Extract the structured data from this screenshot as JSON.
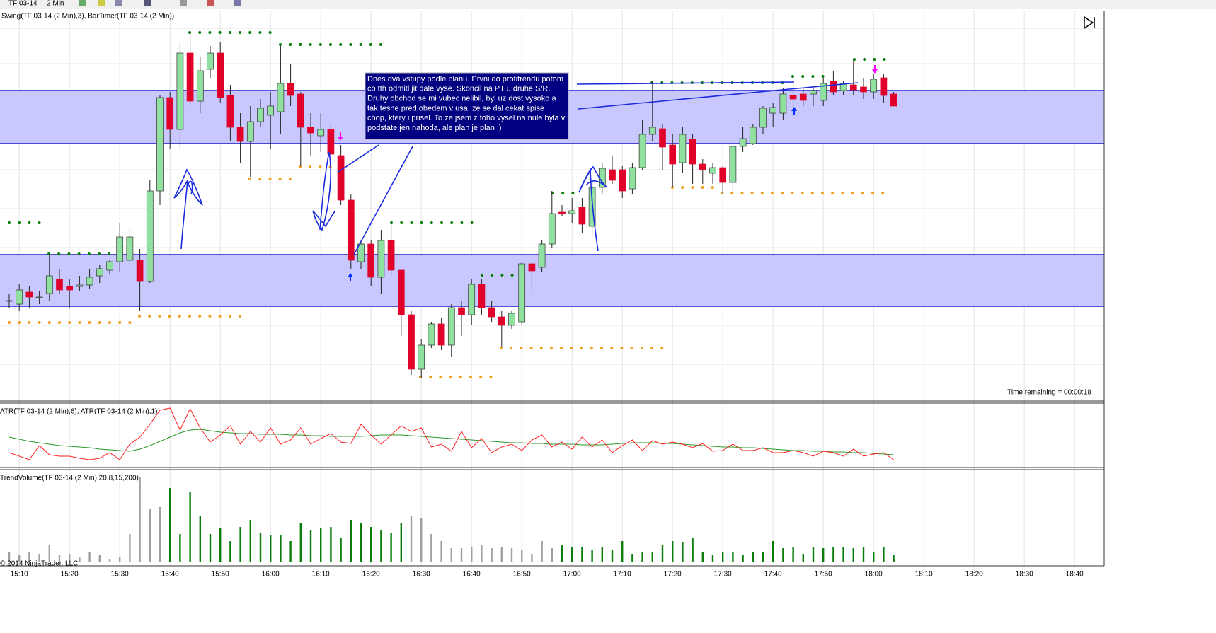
{
  "toolbar": {
    "instrument": "TF 03-14",
    "interval": "2 Min"
  },
  "panels": {
    "price": "Swing(TF 03-14 (2 Min),3), BarTimer(TF 03-14 (2 Min))",
    "atr": "ATR(TF 03-14 (2 Min),6), ATR(TF 03-14 (2 Min),1)",
    "volume": "TrendVolume(TF 03-14 (2 Min),20,8,15,200)"
  },
  "time_remaining": "Time remaining = 00:00:18",
  "copyright": "© 2014 NinjaTrader, LLC",
  "annotation": [
    "Dnes dva vstupy podle planu. Prvni do protitrendu potom",
    "co tth odmitl jit dale vyse. Skoncil na PT u druhe S/R.",
    "Druhy obchod se mi vubec nelibil, byl uz dost vysoko a",
    "tak tesne pred obedem v usa, ze se dal cekat spise",
    "chop, ktery i prisel. To ze jsem z toho vysel na nule byla v",
    "podstate jen nahoda, ale plan je plan :)"
  ],
  "chart_data": {
    "type": "candlestick",
    "xticks": [
      "15:10",
      "15:20",
      "15:30",
      "15:40",
      "15:50",
      "16:00",
      "16:10",
      "16:20",
      "16:30",
      "16:40",
      "16:50",
      "17:00",
      "17:10",
      "17:20",
      "17:30",
      "17:40",
      "17:50",
      "18:00",
      "18:10",
      "18:20",
      "18:30",
      "18:40"
    ],
    "ylim": [
      35,
      585
    ],
    "up_color": "#90e0a0",
    "down_color": "#e0002a",
    "zone_color": "#c8c8ff",
    "zones": [
      [
        397,
        472
      ],
      [
        167,
        240
      ]
    ],
    "candles": [
      [
        175,
        185,
        165,
        175
      ],
      [
        170,
        198,
        160,
        190
      ],
      [
        187,
        195,
        165,
        180
      ],
      [
        180,
        188,
        170,
        180
      ],
      [
        185,
        240,
        175,
        210
      ],
      [
        205,
        220,
        185,
        190
      ],
      [
        195,
        205,
        165,
        190
      ],
      [
        195,
        210,
        188,
        197
      ],
      [
        197,
        220,
        192,
        208
      ],
      [
        210,
        225,
        200,
        220
      ],
      [
        218,
        232,
        212,
        230
      ],
      [
        230,
        285,
        215,
        265
      ],
      [
        232,
        275,
        225,
        265
      ],
      [
        232,
        248,
        160,
        202
      ],
      [
        202,
        345,
        200,
        330
      ],
      [
        330,
        465,
        310,
        462
      ],
      [
        462,
        470,
        390,
        417
      ],
      [
        417,
        540,
        390,
        525
      ],
      [
        525,
        555,
        450,
        457
      ],
      [
        457,
        520,
        440,
        500
      ],
      [
        502,
        535,
        490,
        525
      ],
      [
        525,
        540,
        455,
        462
      ],
      [
        465,
        480,
        400,
        420
      ],
      [
        420,
        440,
        370,
        400
      ],
      [
        400,
        450,
        350,
        428
      ],
      [
        428,
        460,
        420,
        447
      ],
      [
        437,
        470,
        390,
        450
      ],
      [
        442,
        535,
        410,
        482
      ],
      [
        482,
        510,
        450,
        465
      ],
      [
        467,
        470,
        365,
        420
      ],
      [
        420,
        440,
        380,
        412
      ],
      [
        408,
        440,
        385,
        417
      ],
      [
        417,
        425,
        380,
        382
      ],
      [
        380,
        395,
        310,
        317
      ],
      [
        317,
        325,
        220,
        232
      ],
      [
        230,
        260,
        220,
        255
      ],
      [
        255,
        260,
        195,
        208
      ],
      [
        208,
        275,
        185,
        260
      ],
      [
        260,
        285,
        210,
        218
      ],
      [
        218,
        220,
        125,
        155
      ],
      [
        155,
        160,
        70,
        78
      ],
      [
        78,
        120,
        65,
        112
      ],
      [
        112,
        145,
        108,
        142
      ],
      [
        142,
        150,
        105,
        112
      ],
      [
        112,
        170,
        95,
        165
      ],
      [
        165,
        175,
        125,
        155
      ],
      [
        155,
        205,
        140,
        198
      ],
      [
        198,
        205,
        155,
        165
      ],
      [
        165,
        175,
        145,
        152
      ],
      [
        152,
        160,
        110,
        140
      ],
      [
        140,
        160,
        135,
        157
      ],
      [
        145,
        230,
        140,
        227
      ],
      [
        227,
        230,
        190,
        217
      ],
      [
        222,
        260,
        215,
        255
      ],
      [
        255,
        330,
        250,
        298
      ],
      [
        300,
        310,
        295,
        298
      ],
      [
        298,
        320,
        285,
        302
      ],
      [
        307,
        320,
        270,
        283
      ],
      [
        280,
        345,
        265,
        335
      ],
      [
        335,
        370,
        325,
        362
      ],
      [
        360,
        380,
        340,
        345
      ],
      [
        360,
        365,
        320,
        330
      ],
      [
        333,
        370,
        325,
        363
      ],
      [
        363,
        430,
        360,
        410
      ],
      [
        410,
        485,
        400,
        420
      ],
      [
        418,
        425,
        360,
        392
      ],
      [
        395,
        410,
        335,
        368
      ],
      [
        370,
        420,
        355,
        410
      ],
      [
        403,
        410,
        340,
        368
      ],
      [
        368,
        375,
        340,
        360
      ],
      [
        355,
        370,
        340,
        363
      ],
      [
        363,
        365,
        325,
        342
      ],
      [
        342,
        395,
        330,
        393
      ],
      [
        393,
        420,
        385,
        404
      ],
      [
        397,
        425,
        395,
        420
      ],
      [
        420,
        450,
        410,
        447
      ],
      [
        440,
        455,
        420,
        448
      ],
      [
        440,
        475,
        430,
        467
      ],
      [
        465,
        475,
        445,
        460
      ],
      [
        467,
        475,
        450,
        458
      ],
      [
        467,
        475,
        450,
        472
      ],
      [
        458,
        490,
        450,
        482
      ],
      [
        485,
        500,
        465,
        470
      ],
      [
        472,
        485,
        465,
        482
      ],
      [
        480,
        515,
        465,
        473
      ],
      [
        477,
        490,
        460,
        470
      ],
      [
        470,
        495,
        460,
        488
      ],
      [
        490,
        495,
        455,
        465
      ],
      [
        467,
        470,
        450,
        450
      ]
    ],
    "atr_ylim": [
      0,
      90
    ],
    "atr_series": [
      {
        "color": "#2a9a2a",
        "values": [
          42,
          39,
          36,
          34,
          32,
          30,
          29,
          28,
          27,
          25,
          24,
          23,
          22,
          25,
          30,
          36,
          42,
          48,
          52,
          53,
          51,
          49,
          48,
          47,
          47,
          46,
          46,
          46,
          45,
          45,
          44,
          44,
          43,
          43,
          43,
          43,
          44,
          45,
          45,
          45,
          44,
          43,
          42,
          41,
          40,
          39,
          38,
          37,
          36,
          35,
          34,
          34,
          33,
          33,
          32,
          32,
          32,
          31,
          31,
          31,
          32,
          33,
          34,
          34,
          34,
          33,
          33,
          32,
          31,
          30,
          29,
          28,
          28,
          27,
          27,
          26,
          25,
          24,
          23,
          23,
          22,
          22,
          21,
          21,
          20,
          20,
          19,
          18,
          17
        ]
      },
      {
        "color": "#ff2020",
        "values": [
          20,
          15,
          10,
          30,
          17,
          15,
          15,
          12,
          10,
          12,
          20,
          10,
          32,
          42,
          60,
          80,
          83,
          52,
          82,
          55,
          35,
          45,
          58,
          32,
          50,
          35,
          55,
          32,
          38,
          55,
          32,
          40,
          47,
          35,
          33,
          60,
          45,
          32,
          45,
          58,
          50,
          55,
          28,
          32,
          22,
          50,
          27,
          40,
          20,
          28,
          32,
          23,
          38,
          45,
          28,
          35,
          25,
          42,
          28,
          38,
          20,
          30,
          38,
          23,
          37,
          32,
          35,
          32,
          27,
          33,
          22,
          23,
          32,
          23,
          23,
          27,
          20,
          20,
          23,
          20,
          15,
          22,
          20,
          15,
          25,
          15,
          18,
          20,
          10
        ]
      }
    ],
    "volume_ylim": [
      0,
      130
    ],
    "volume": [
      15,
      10,
      15,
      12,
      25,
      10,
      12,
      8,
      15,
      10,
      5,
      8,
      40,
      120,
      75,
      78,
      105,
      40,
      100,
      65,
      40,
      48,
      30,
      50,
      60,
      42,
      38,
      38,
      30,
      55,
      45,
      48,
      50,
      35,
      60,
      55,
      50,
      45,
      42,
      55,
      65,
      62,
      40,
      30,
      20,
      20,
      22,
      25,
      20,
      22,
      20,
      18,
      12,
      30,
      20,
      25,
      22,
      22,
      18,
      22,
      18,
      30,
      12,
      15,
      15,
      25,
      30,
      28,
      35,
      15,
      10,
      15,
      15,
      10,
      15,
      15,
      30,
      20,
      22,
      12,
      22,
      20,
      22,
      22,
      20,
      22,
      15,
      22,
      10
    ],
    "volume_colors": [
      "#a0a0a0",
      "#a0a0a0",
      "#a0a0a0",
      "#a0a0a0",
      "#a0a0a0",
      "#a0a0a0",
      "#a0a0a0",
      "#a0a0a0",
      "#a0a0a0",
      "#a0a0a0",
      "#a0a0a0",
      "#a0a0a0",
      "#a0a0a0",
      "#a0a0a0",
      "#a0a0a0",
      "#a0a0a0",
      "#0a7d0a",
      "#0a7d0a",
      "#0a7d0a",
      "#0a7d0a",
      "#0a7d0a",
      "#0a7d0a",
      "#0a7d0a",
      "#0a7d0a",
      "#0a7d0a",
      "#0a7d0a",
      "#0a7d0a",
      "#0a7d0a",
      "#0a7d0a",
      "#0a7d0a",
      "#0a7d0a",
      "#0a7d0a",
      "#0a7d0a",
      "#0a7d0a",
      "#0a7d0a",
      "#0a7d0a",
      "#0a7d0a",
      "#0a7d0a",
      "#0a7d0a",
      "#0a7d0a",
      "#a0a0a0",
      "#a0a0a0",
      "#a0a0a0",
      "#a0a0a0",
      "#a0a0a0",
      "#a0a0a0",
      "#a0a0a0",
      "#a0a0a0",
      "#a0a0a0",
      "#a0a0a0",
      "#a0a0a0",
      "#a0a0a0",
      "#a0a0a0",
      "#a0a0a0",
      "#a0a0a0",
      "#0a7d0a",
      "#0a7d0a",
      "#0a7d0a",
      "#0a7d0a",
      "#0a7d0a",
      "#0a7d0a",
      "#0a7d0a",
      "#0a7d0a",
      "#0a7d0a",
      "#0a7d0a",
      "#0a7d0a",
      "#0a7d0a",
      "#0a7d0a",
      "#0a7d0a",
      "#0a7d0a",
      "#0a7d0a",
      "#0a7d0a",
      "#0a7d0a",
      "#0a7d0a",
      "#0a7d0a",
      "#0a7d0a",
      "#0a7d0a",
      "#0a7d0a",
      "#0a7d0a",
      "#0a7d0a",
      "#0a7d0a",
      "#0a7d0a",
      "#0a7d0a",
      "#0a7d0a",
      "#0a7d0a",
      "#0a7d0a",
      "#0a7d0a",
      "#0a7d0a",
      "#0a7d0a"
    ]
  }
}
